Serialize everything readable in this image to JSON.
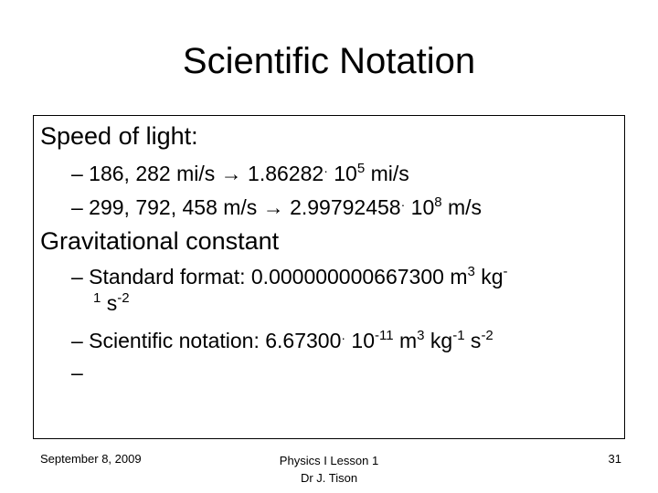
{
  "title": "Scientific Notation",
  "sections": [
    {
      "heading": "Speed of light:",
      "items": [
        {
          "prefix": "– 186, 282 mi/s → 1.86282",
          "dot": "·",
          "mid": " 10",
          "exp": "5",
          "suffix": " mi/s"
        },
        {
          "prefix": "– 299, 792, 458 m/s → 2.99792458",
          "dot": "·",
          "mid": " 10",
          "exp": "8",
          "suffix": " m/s"
        }
      ]
    },
    {
      "heading": "Gravitational constant",
      "standard": {
        "text": "– Standard format: 0.000000000667300 m",
        "exp_m": "3",
        "kg": " kg",
        "exp_kg": "-",
        "cont_exp": "1",
        "cont_s": " s",
        "cont_exp_s": "-2"
      },
      "scientific": {
        "prefix": "– Scientific notation: 6.67300",
        "dot": "·",
        "mid": " 10",
        "exp": "-11",
        "m": " m",
        "exp_m": "3",
        "kg": " kg",
        "exp_kg": "-1",
        "s": " s",
        "exp_s": "-2"
      },
      "empty_bullet": "–"
    }
  ],
  "footer": {
    "date": "September 8, 2009",
    "course_line1": "Physics I Lesson 1",
    "course_line2": "Dr J. Tison",
    "page": "31"
  }
}
